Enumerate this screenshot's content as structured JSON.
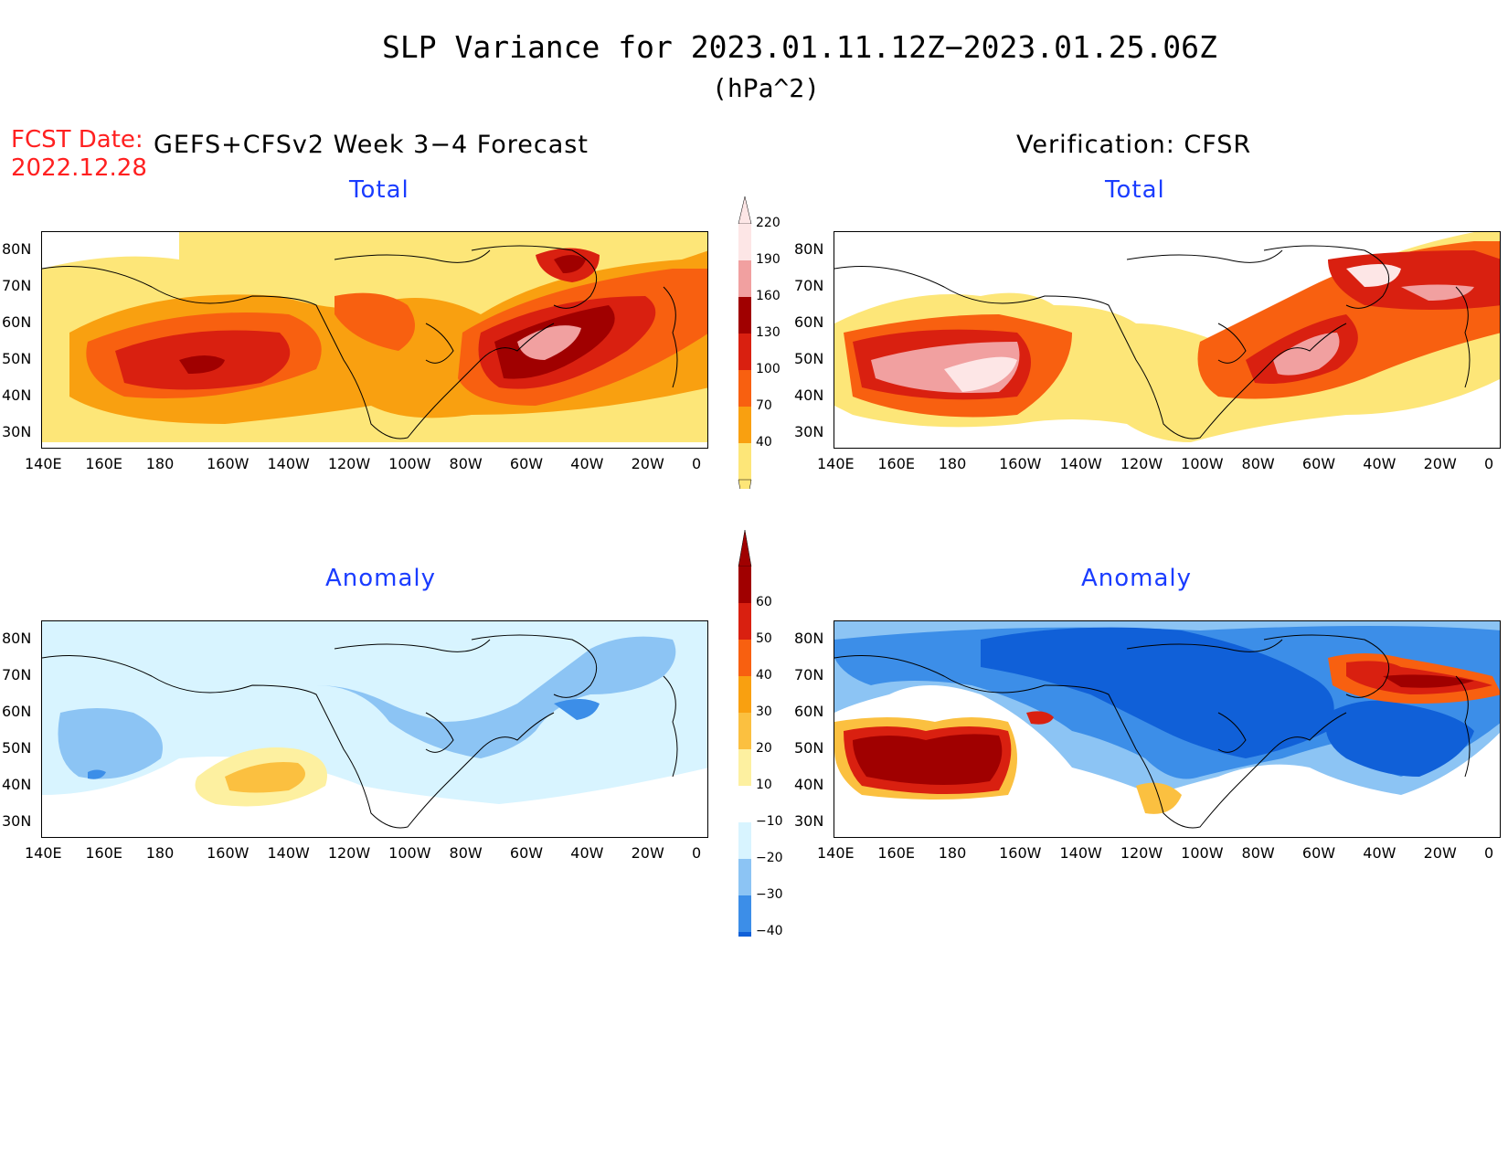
{
  "header": {
    "title": "SLP Variance for 2023.01.11.12Z−2023.01.25.06Z",
    "units": "(hPa^2)",
    "fcst_label": "FCST Date:",
    "fcst_date": "2022.12.28",
    "left_column_title": "GEFS+CFSv2 Week 3−4 Forecast",
    "right_column_title": "Verification: CFSR"
  },
  "panels": {
    "top_left_title": "Total",
    "top_right_title": "Total",
    "bottom_left_title": "Anomaly",
    "bottom_right_title": "Anomaly"
  },
  "axes": {
    "lat_labels": [
      "80N",
      "70N",
      "60N",
      "50N",
      "40N",
      "30N"
    ],
    "lon_labels": [
      "140E",
      "160E",
      "180",
      "160W",
      "140W",
      "120W",
      "100W",
      "80W",
      "60W",
      "40W",
      "20W",
      "0"
    ]
  },
  "colorbars": {
    "total": {
      "labels": [
        "220",
        "190",
        "160",
        "130",
        "100",
        "70",
        "40"
      ],
      "colors": [
        "#fde6e6",
        "#f1a0a0",
        "#a00000",
        "#d92010",
        "#f86010",
        "#f9a010",
        "#fde678"
      ]
    },
    "anomaly": {
      "labels": [
        "60",
        "50",
        "40",
        "30",
        "20",
        "10",
        "−10",
        "−20",
        "−30",
        "−40"
      ],
      "colors": [
        "#a00000",
        "#d92010",
        "#f86010",
        "#f9a010",
        "#fbc040",
        "#fdf0a0",
        "#ffffff",
        "#d8f4ff",
        "#8cc4f4",
        "#3c8ee8",
        "#1060d8"
      ]
    }
  },
  "colors": {
    "title_red": "#ff2020",
    "subtitle_blue": "#1a3cff"
  }
}
